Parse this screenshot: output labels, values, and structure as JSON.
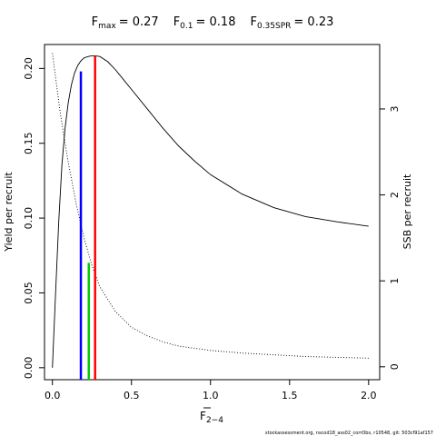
{
  "chart_data": {
    "type": "line",
    "title": {
      "fmax": {
        "base": "F",
        "sub": "max",
        "value": "= 0.27"
      },
      "f01": {
        "base": "F",
        "sub": "0.1",
        "value": "= 0.18"
      },
      "fspr": {
        "base": "F",
        "sub": "0.35SPR",
        "value": "= 0.23"
      }
    },
    "xlabel": {
      "base": "F",
      "sub": "2−4"
    },
    "ylabel": "Yield per recruit",
    "y2label": "SSB per recruit",
    "xlim": [
      -0.05,
      2.07
    ],
    "ylim": [
      -0.008,
      0.216
    ],
    "y2lim": [
      -0.15,
      3.75
    ],
    "xticks": [
      "0.0",
      "0.5",
      "1.0",
      "1.5",
      "2.0"
    ],
    "yticks": [
      "0.00",
      "0.05",
      "0.10",
      "0.15",
      "0.20"
    ],
    "y2ticks": [
      "0",
      "1",
      "2",
      "3"
    ],
    "grid": false,
    "series": [
      {
        "axis": "left",
        "style": "solid",
        "color": "#000000",
        "x": [
          0,
          0.02,
          0.04,
          0.06,
          0.08,
          0.1,
          0.12,
          0.14,
          0.16,
          0.18,
          0.2,
          0.22,
          0.24,
          0.27,
          0.3,
          0.35,
          0.4,
          0.45,
          0.5,
          0.6,
          0.7,
          0.8,
          0.9,
          1.0,
          1.2,
          1.4,
          1.6,
          1.8,
          2.0
        ],
        "values": [
          0.0,
          0.05,
          0.098,
          0.135,
          0.16,
          0.177,
          0.189,
          0.197,
          0.202,
          0.205,
          0.207,
          0.2078,
          0.2083,
          0.2085,
          0.208,
          0.2045,
          0.199,
          0.1925,
          0.186,
          0.173,
          0.16,
          0.148,
          0.138,
          0.129,
          0.116,
          0.107,
          0.101,
          0.0975,
          0.0945
        ]
      },
      {
        "axis": "right",
        "style": "dotted",
        "color": "#000000",
        "x": [
          0,
          0.05,
          0.1,
          0.15,
          0.2,
          0.25,
          0.3,
          0.4,
          0.5,
          0.6,
          0.7,
          0.8,
          1.0,
          1.2,
          1.4,
          1.6,
          1.8,
          2.0
        ],
        "values": [
          3.65,
          2.95,
          2.38,
          1.9,
          1.5,
          1.18,
          0.93,
          0.64,
          0.46,
          0.36,
          0.29,
          0.24,
          0.19,
          0.16,
          0.14,
          0.12,
          0.11,
          0.1
        ]
      }
    ],
    "reference_lines": [
      {
        "x": 0.18,
        "top": 0.198,
        "axis": "left",
        "color": "#0000ff"
      },
      {
        "x": 0.27,
        "top": 0.2085,
        "axis": "left",
        "color": "#ff0000"
      },
      {
        "x": 0.23,
        "top": 1.21,
        "axis": "right",
        "color": "#00cc00"
      }
    ]
  },
  "footer_text": "stockassessment.org, nscod18_ass02_corrObs, r10548, git: 503cf91af157"
}
